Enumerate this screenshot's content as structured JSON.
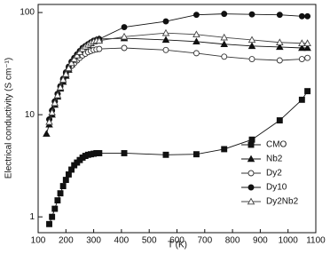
{
  "chart_data": {
    "type": "line",
    "x_label": "T (K)",
    "y_label": "Electrical conductivity (S cm⁻¹)",
    "log_y": true,
    "legend": "lower right",
    "x": [
      130,
      140,
      150,
      160,
      170,
      180,
      190,
      200,
      210,
      220,
      230,
      240,
      250,
      260,
      270,
      280,
      290,
      300,
      310,
      320,
      410,
      560,
      670,
      770,
      870,
      970,
      1050,
      1070
    ],
    "xlim": [
      100,
      1100
    ],
    "xticks": [
      100,
      200,
      300,
      400,
      500,
      600,
      700,
      800,
      900,
      1000,
      1100
    ],
    "ylim": [
      0.7,
      120
    ],
    "yticks": [
      1,
      10,
      100
    ],
    "series": [
      {
        "name": "CMO",
        "color": "#111111",
        "marker": "square-filled",
        "values": [
          null,
          0.85,
          1.0,
          1.2,
          1.45,
          1.7,
          2.0,
          2.3,
          2.6,
          2.9,
          3.2,
          3.4,
          3.6,
          3.8,
          3.95,
          4.05,
          4.1,
          4.15,
          4.2,
          4.2,
          4.2,
          4.05,
          4.1,
          4.6,
          5.7,
          8.8,
          14,
          17
        ]
      },
      {
        "name": "Nb2",
        "color": "#111111",
        "marker": "triangle-filled",
        "values": [
          6.5,
          8,
          10,
          12.5,
          15,
          18,
          21,
          24,
          27.5,
          31,
          34,
          37,
          40,
          43,
          46,
          48,
          50,
          52,
          54,
          55,
          56,
          54,
          52,
          49,
          47,
          46,
          45,
          45
        ]
      },
      {
        "name": "Dy2",
        "color": "#333333",
        "marker": "circle-open",
        "values": [
          null,
          9,
          11,
          13.5,
          16,
          19,
          22,
          25,
          28,
          30,
          32,
          34,
          36,
          38,
          39.5,
          41,
          42,
          43,
          43.5,
          44,
          45,
          43,
          40,
          37,
          35,
          34,
          35,
          36
        ]
      },
      {
        "name": "Dy10",
        "color": "#111111",
        "marker": "circle-filled",
        "values": [
          null,
          9,
          11,
          13.5,
          16,
          19,
          22.5,
          26,
          29.5,
          33,
          36,
          39,
          42,
          45,
          47,
          49,
          51,
          53,
          54,
          55,
          72,
          82,
          95,
          97,
          96,
          95,
          92,
          92
        ]
      },
      {
        "name": "Dy2Nb2",
        "color": "#444444",
        "marker": "triangle-open",
        "values": [
          null,
          8.5,
          10.5,
          13,
          15.5,
          18.5,
          22,
          25,
          28.5,
          32,
          35,
          38,
          41,
          44,
          46.5,
          48.5,
          50.5,
          52,
          53,
          53,
          58,
          63,
          61,
          57,
          54,
          51,
          50,
          50
        ]
      }
    ]
  }
}
